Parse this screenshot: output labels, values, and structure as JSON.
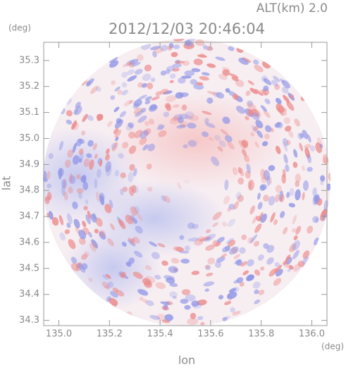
{
  "chart_data": {
    "type": "radar-map",
    "title": "2012/12/03 20:46:04",
    "alt_label": "ALT(km) 2.0",
    "x_label": "lon",
    "x_unit": "(deg)",
    "y_label": "lat",
    "y_unit": "(deg)",
    "xlim": [
      134.94,
      136.06
    ],
    "xticks": [
      {
        "value": 135,
        "label": "135.0"
      },
      135.2,
      135.4,
      135.6,
      135.8,
      {
        "value": 136,
        "label": "136.0"
      }
    ],
    "ylim": [
      34.28,
      35.37
    ],
    "yticks": [
      34.3,
      34.4,
      34.5,
      34.6,
      34.7,
      34.8,
      34.9,
      {
        "value": 35,
        "label": "35.0"
      },
      35.1,
      35.2,
      35.3
    ]
  }
}
